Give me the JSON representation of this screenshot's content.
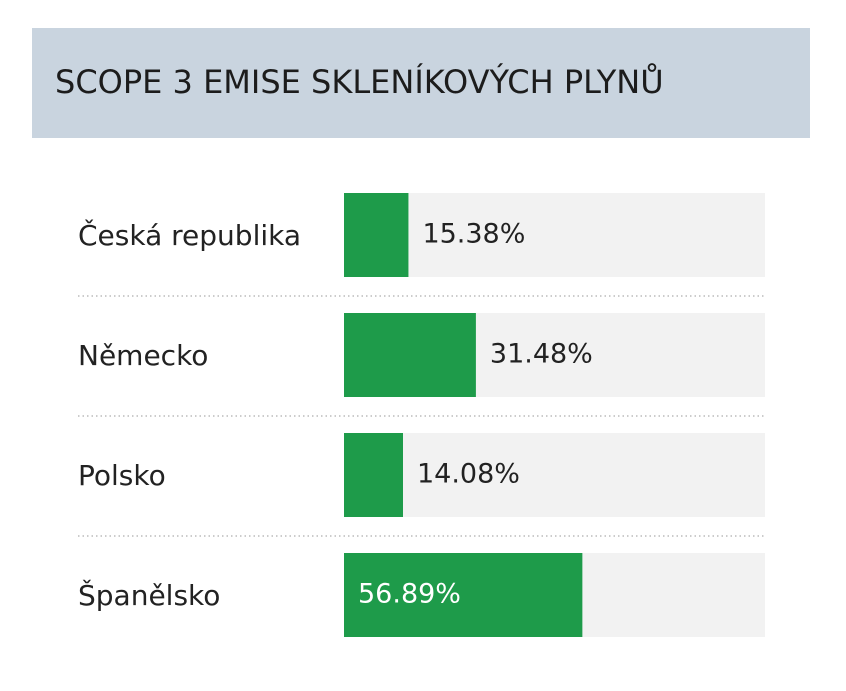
{
  "chart_data": {
    "type": "bar",
    "orientation": "horizontal",
    "title": "SCOPE 3 EMISE SKLENÍKOVÝCH PLYNŮ",
    "categories": [
      "Česká republika",
      "Německo",
      "Polsko",
      "Španělsko"
    ],
    "values": [
      15.38,
      31.48,
      14.08,
      56.89
    ],
    "value_labels": [
      "15.38%",
      "31.48%",
      "14.08%",
      "56.89%"
    ],
    "color": "#1e9b4a",
    "xlim": [
      0,
      100
    ]
  }
}
